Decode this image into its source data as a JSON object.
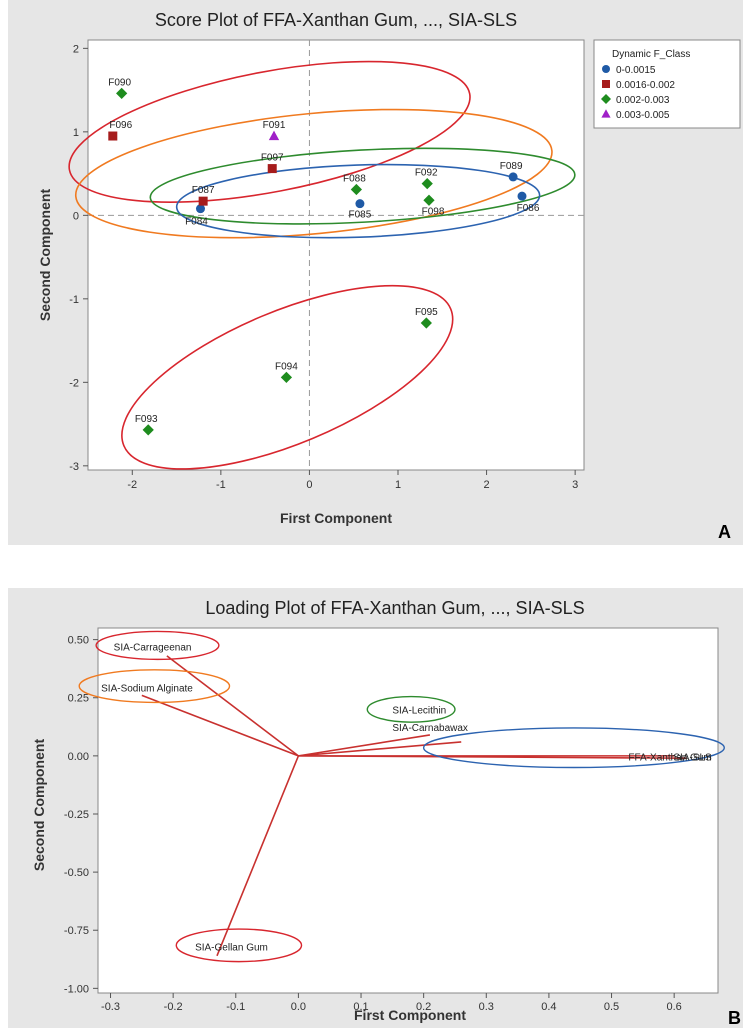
{
  "panel_a_letter": "A",
  "panel_b_letter": "B",
  "chart_data": [
    {
      "type": "scatter",
      "title": "Score Plot of FFA-Xanthan Gum, ..., SIA-SLS",
      "xlabel": "First Component",
      "ylabel": "Second Component",
      "xlim": [
        -2.5,
        3.1
      ],
      "ylim": [
        -3.05,
        2.1
      ],
      "xticks": [
        -2,
        -1,
        0,
        1,
        2,
        3
      ],
      "yticks": [
        -3,
        -2,
        -1,
        0,
        1,
        2
      ],
      "reference_lines": {
        "x": 0,
        "y": 0
      },
      "legend": {
        "title": "Dynamic F_Class",
        "placement": "right",
        "entries": [
          {
            "label": "0-0.0015",
            "marker": "circle",
            "color": "#1f5aa6"
          },
          {
            "label": "0.0016-0.002",
            "marker": "square",
            "color": "#a61c1c"
          },
          {
            "label": "0.002-0.003",
            "marker": "diamond",
            "color": "#1e8c1e"
          },
          {
            "label": "0.003-0.005",
            "marker": "triangle",
            "color": "#a020c8"
          }
        ]
      },
      "points": [
        {
          "label": "F084",
          "x": -1.23,
          "y": 0.08,
          "class": "0-0.0015"
        },
        {
          "label": "F085",
          "x": 0.57,
          "y": 0.14,
          "class": "0-0.0015"
        },
        {
          "label": "F086",
          "x": 2.4,
          "y": 0.23,
          "class": "0-0.0015"
        },
        {
          "label": "F089",
          "x": 2.3,
          "y": 0.46,
          "class": "0-0.0015"
        },
        {
          "label": "F087",
          "x": -1.2,
          "y": 0.17,
          "class": "0.0016-0.002"
        },
        {
          "label": "F096",
          "x": -2.22,
          "y": 0.95,
          "class": "0.0016-0.002"
        },
        {
          "label": "F097",
          "x": -0.42,
          "y": 0.56,
          "class": "0.0016-0.002"
        },
        {
          "label": "F090",
          "x": -2.12,
          "y": 1.46,
          "class": "0.002-0.003"
        },
        {
          "label": "F088",
          "x": 0.53,
          "y": 0.31,
          "class": "0.002-0.003"
        },
        {
          "label": "F092",
          "x": 1.33,
          "y": 0.38,
          "class": "0.002-0.003"
        },
        {
          "label": "F098",
          "x": 1.35,
          "y": 0.18,
          "class": "0.002-0.003"
        },
        {
          "label": "F095",
          "x": 1.32,
          "y": -1.29,
          "class": "0.002-0.003"
        },
        {
          "label": "F094",
          "x": -0.26,
          "y": -1.94,
          "class": "0.002-0.003"
        },
        {
          "label": "F093",
          "x": -1.82,
          "y": -2.57,
          "class": "0.002-0.003"
        },
        {
          "label": "F091",
          "x": -0.4,
          "y": 0.95,
          "class": "0.003-0.005"
        }
      ],
      "groupings": [
        {
          "color": "#d8262e",
          "cx": -0.45,
          "cy": 1.0,
          "rx": 2.3,
          "ry": 0.3,
          "angle_deg": -10.8
        },
        {
          "color": "#f07a20",
          "cx": 0.05,
          "cy": 0.5,
          "rx": 2.7,
          "ry": 0.3,
          "angle_deg": -5.5
        },
        {
          "color": "#2e8b2e",
          "cx": 0.6,
          "cy": 0.35,
          "rx": 2.4,
          "ry": 0.18,
          "angle_deg": -3.1
        },
        {
          "color": "#2c63b0",
          "cx": 0.55,
          "cy": 0.17,
          "rx": 2.05,
          "ry": 0.18,
          "angle_deg": -1.9
        },
        {
          "color": "#d8262e",
          "cx": -0.25,
          "cy": -1.94,
          "rx": 2.0,
          "ry": 0.33,
          "angle_deg": -22.7
        }
      ]
    },
    {
      "type": "line",
      "title": "Loading Plot of FFA-Xanthan Gum, ..., SIA-SLS",
      "xlabel": "First Component",
      "ylabel": "Second Component",
      "xlim": [
        -0.32,
        0.67
      ],
      "ylim": [
        -1.02,
        0.55
      ],
      "xticks": [
        -0.3,
        -0.2,
        -0.1,
        0.0,
        0.1,
        0.2,
        0.3,
        0.4,
        0.5,
        0.6
      ],
      "yticks": [
        -1.0,
        -0.75,
        -0.5,
        -0.25,
        0.0,
        0.25,
        0.5
      ],
      "line_color": "#c8312f",
      "vectors": [
        {
          "label": "SIA-Carrageenan",
          "x": -0.21,
          "y": 0.43
        },
        {
          "label": "SIA-Sodium Alginate",
          "x": -0.25,
          "y": 0.26
        },
        {
          "label": "SIA-Lecithin",
          "x": 0.21,
          "y": 0.09
        },
        {
          "label": "SIA-Carnabawax",
          "x": 0.26,
          "y": 0.06
        },
        {
          "label": "FFA-Xanthan Gum",
          "x": 0.62,
          "y": -0.01
        },
        {
          "label": "SIA-SLS",
          "x": 0.6,
          "y": 0.0
        },
        {
          "label": "SIA-Gellan Gum",
          "x": -0.13,
          "y": -0.86
        }
      ],
      "groupings": [
        {
          "color": "#d8262e",
          "cx": -0.225,
          "cy": 0.475,
          "rx": 0.098,
          "ry": 0.06
        },
        {
          "color": "#f07a20",
          "cx": -0.23,
          "cy": 0.3,
          "rx": 0.12,
          "ry": 0.07
        },
        {
          "color": "#2e8b2e",
          "cx": 0.18,
          "cy": 0.2,
          "rx": 0.07,
          "ry": 0.055
        },
        {
          "color": "#2c63b0",
          "cx": 0.44,
          "cy": 0.035,
          "rx": 0.24,
          "ry": 0.085
        },
        {
          "color": "#d8262e",
          "cx": -0.095,
          "cy": -0.815,
          "rx": 0.1,
          "ry": 0.07
        }
      ]
    }
  ]
}
